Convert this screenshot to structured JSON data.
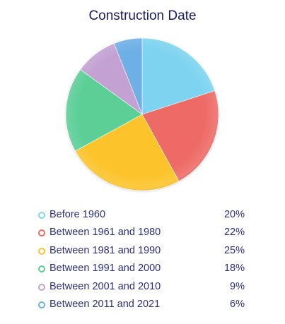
{
  "chart_data": {
    "type": "pie",
    "title": "Construction Date",
    "slices": [
      {
        "label": "Before 1960",
        "value": 20,
        "value_label": "20%",
        "color": "#7dd3f0"
      },
      {
        "label": "Between 1961 and 1980",
        "value": 22,
        "value_label": "22%",
        "color": "#ee6b66"
      },
      {
        "label": "Between 1981 and 1990",
        "value": 25,
        "value_label": "25%",
        "color": "#fcc32a"
      },
      {
        "label": "Between 1991 and 2000",
        "value": 18,
        "value_label": "18%",
        "color": "#5ccf97"
      },
      {
        "label": "Between 2001 and 2010",
        "value": 9,
        "value_label": "9%",
        "color": "#c3a2d3"
      },
      {
        "label": "Between 2011 and 2021",
        "value": 6,
        "value_label": "6%",
        "color": "#6eb0e6"
      }
    ],
    "legend_position": "bottom"
  }
}
